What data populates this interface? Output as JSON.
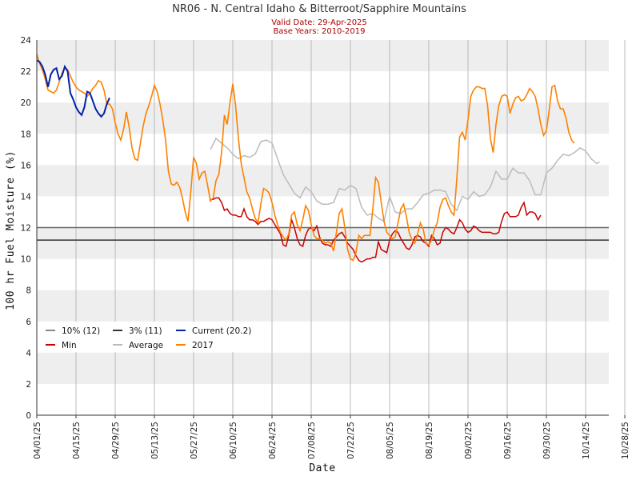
{
  "chart_data": {
    "type": "line",
    "title": "NR06 - N. Central Idaho & Bitterroot/Sapphire Mountains",
    "subtitle_1": "Valid Date: 29-Apr-2025",
    "subtitle_2": "Base Years: 2010-2019",
    "xlabel": "Date",
    "ylabel": "100 hr Fuel Moisture (%)",
    "ylim": [
      0,
      24
    ],
    "yticks": [
      "0",
      "2",
      "4",
      "6",
      "8",
      "10",
      "12",
      "14",
      "16",
      "18",
      "20",
      "22",
      "24"
    ],
    "xticks": [
      "04/01/25",
      "04/15/25",
      "04/29/25",
      "05/13/25",
      "05/27/25",
      "06/10/25",
      "06/24/25",
      "07/08/25",
      "07/22/25",
      "08/05/25",
      "08/19/25",
      "09/02/25",
      "09/16/25",
      "09/30/25",
      "10/14/25",
      "10/28/25"
    ],
    "grid": "alternating horizontal bands, vertical lines at ticks",
    "legend_position": "lower-left",
    "reference_lines": [
      {
        "name": "10% (12)",
        "value": 12.0,
        "color": "#666666"
      },
      {
        "name": "3% (11)",
        "value": 11.2,
        "color": "#333333"
      }
    ],
    "series": [
      {
        "name": "Current (20.2)",
        "color": "#0022aa",
        "x": [
          0,
          1,
          2,
          3,
          4,
          5,
          6,
          7,
          8,
          9,
          10,
          11,
          12,
          13,
          14,
          15,
          16,
          17,
          18,
          19,
          20,
          21,
          22,
          23,
          24,
          25,
          26,
          27,
          28
        ],
        "y": [
          22.7,
          22.6,
          22.3,
          21.8,
          21.0,
          21.8,
          22.1,
          22.2,
          21.5,
          21.7,
          22.3,
          22.0,
          20.6,
          20.2,
          19.7,
          19.4,
          19.2,
          19.7,
          20.7,
          20.6,
          20.1,
          19.6,
          19.3,
          19.1,
          19.3,
          19.9,
          20.3,
          null,
          null
        ]
      },
      {
        "name": "Min",
        "color": "#cc0000",
        "x": [
          62,
          63,
          64,
          65,
          66,
          67,
          68,
          69,
          70,
          71,
          72,
          73,
          74,
          75,
          76,
          77,
          78,
          79,
          80,
          81,
          82,
          83,
          84,
          85,
          86,
          87,
          88,
          89,
          90,
          91,
          92,
          93,
          94,
          95,
          96,
          97,
          98,
          99,
          100,
          101,
          102,
          103,
          104,
          105,
          106,
          107,
          108,
          109,
          110,
          111,
          112,
          113,
          114,
          115,
          116,
          117,
          118,
          119,
          120,
          121,
          122,
          123,
          124,
          125,
          126,
          127,
          128,
          129,
          130,
          131,
          132,
          133,
          134,
          135,
          136,
          137,
          138,
          139,
          140,
          141,
          142,
          143,
          144,
          145,
          146,
          147,
          148,
          149,
          150,
          151,
          152,
          153,
          154,
          155,
          156,
          157,
          158,
          159,
          160,
          161,
          162,
          163,
          164,
          165,
          166,
          167,
          168,
          169,
          170,
          171,
          172,
          173,
          174,
          175,
          176,
          177,
          178,
          179,
          180,
          181,
          182,
          183
        ],
        "y": [
          13.8,
          13.8,
          13.9,
          13.9,
          13.6,
          13.1,
          13.2,
          12.9,
          12.8,
          12.8,
          12.7,
          12.7,
          13.2,
          12.7,
          12.5,
          12.5,
          12.4,
          12.2,
          12.4,
          12.4,
          12.5,
          12.6,
          12.5,
          12.2,
          11.9,
          11.6,
          10.9,
          10.8,
          11.5,
          12.5,
          12.0,
          11.3,
          10.9,
          10.8,
          11.5,
          11.9,
          12.0,
          11.8,
          12.1,
          11.4,
          11.0,
          10.9,
          10.9,
          10.8,
          11.2,
          11.4,
          11.6,
          11.7,
          11.4,
          11.0,
          10.8,
          10.6,
          10.2,
          9.9,
          9.8,
          9.9,
          10.0,
          10.0,
          10.1,
          10.1,
          11.1,
          10.6,
          10.5,
          10.4,
          11.2,
          11.6,
          11.8,
          11.7,
          11.3,
          11.0,
          10.7,
          10.6,
          10.9,
          11.4,
          11.5,
          11.4,
          11.1,
          11.0,
          10.8,
          11.5,
          11.3,
          10.9,
          11.0,
          11.7,
          12.0,
          11.9,
          11.7,
          11.6,
          12.0,
          12.5,
          12.3,
          11.9,
          11.7,
          11.8,
          12.1,
          12.0,
          11.8,
          11.7,
          11.7,
          11.7,
          11.7,
          11.6,
          11.6,
          11.7,
          12.4,
          12.9,
          13.0,
          12.7,
          12.7,
          12.7,
          12.8,
          13.3,
          13.6,
          12.8,
          13.0,
          13.0,
          12.9,
          12.5,
          12.8,
          null,
          null,
          null
        ]
      },
      {
        "name": "Average",
        "color": "#bbbbbb",
        "x": [
          62,
          64,
          66,
          68,
          70,
          72,
          74,
          76,
          78,
          80,
          82,
          84,
          86,
          88,
          90,
          92,
          94,
          96,
          98,
          100,
          102,
          104,
          106,
          108,
          110,
          112,
          114,
          116,
          118,
          120,
          122,
          124,
          126,
          128,
          130,
          132,
          134,
          136,
          138,
          140,
          142,
          144,
          146,
          148,
          150,
          152,
          154,
          156,
          158,
          160,
          162,
          164,
          166,
          168,
          170,
          172,
          174,
          176,
          178,
          180,
          182
        ],
        "y": [
          17.0,
          17.7,
          17.4,
          17.1,
          16.7,
          16.4,
          16.6,
          16.5,
          16.7,
          17.5,
          17.6,
          17.4,
          16.4,
          15.4,
          14.8,
          14.2,
          13.9,
          14.6,
          14.3,
          13.7,
          13.5,
          13.5,
          13.6,
          14.5,
          14.4,
          14.7,
          14.5,
          13.3,
          12.8,
          12.9,
          12.6,
          12.4,
          14.0,
          13.0,
          12.9,
          13.2,
          13.2,
          13.6,
          14.1,
          14.2,
          14.4,
          14.4,
          14.3,
          13.5,
          13.1,
          14.0,
          13.8,
          14.3,
          14.0,
          14.1,
          14.6,
          15.6,
          15.1,
          15.1,
          15.8,
          15.5,
          15.5,
          15.0,
          14.1,
          14.1,
          15.5
        ],
        "note": "continues"
      },
      {
        "name": "2017",
        "color": "#ff8000",
        "x": [],
        "y": []
      }
    ]
  },
  "legend": [
    {
      "label": "10% (12)",
      "color": "#888888"
    },
    {
      "label": "3% (11)",
      "color": "#333333"
    },
    {
      "label": "Current (20.2)",
      "color": "#0022aa"
    },
    {
      "label": "Min",
      "color": "#cc0000"
    },
    {
      "label": "Average",
      "color": "#bbbbbb"
    },
    {
      "label": "2017",
      "color": "#ff8000"
    }
  ]
}
